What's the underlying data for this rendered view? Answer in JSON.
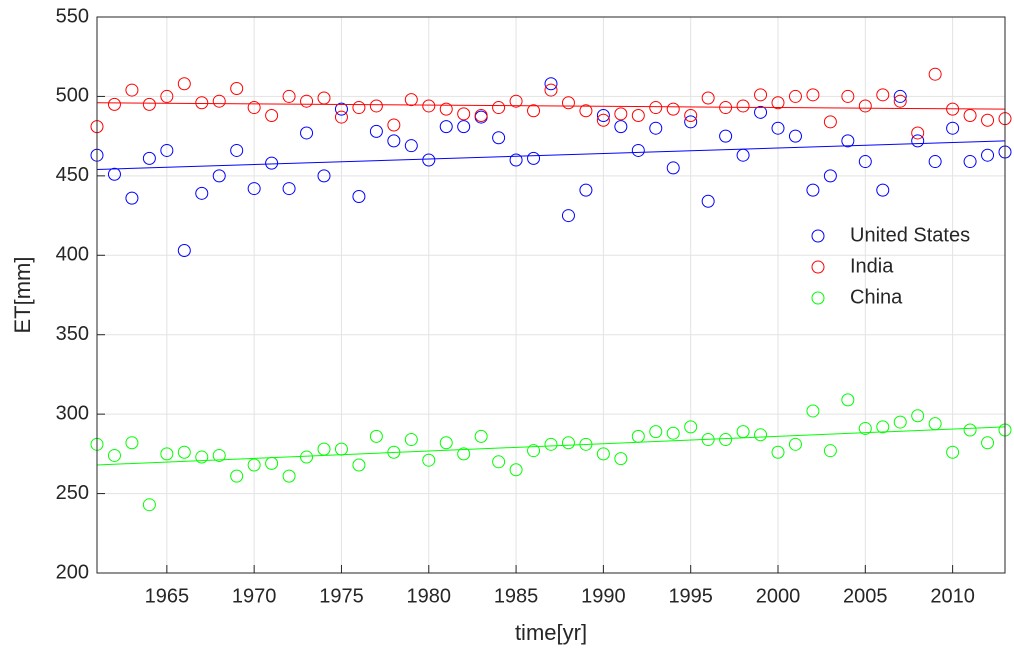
{
  "chart_data": {
    "type": "scatter",
    "xlabel": "time[yr]",
    "ylabel": "ET[mm]",
    "x": [
      1961,
      1962,
      1963,
      1964,
      1965,
      1966,
      1967,
      1968,
      1969,
      1970,
      1971,
      1972,
      1973,
      1974,
      1975,
      1976,
      1977,
      1978,
      1979,
      1980,
      1981,
      1982,
      1983,
      1984,
      1985,
      1986,
      1987,
      1988,
      1989,
      1990,
      1991,
      1992,
      1993,
      1994,
      1995,
      1996,
      1997,
      1998,
      1999,
      2000,
      2001,
      2002,
      2003,
      2004,
      2005,
      2006,
      2007,
      2008,
      2009,
      2010,
      2011,
      2012,
      2013
    ],
    "series": [
      {
        "name": "United States",
        "color": "#0000ff",
        "values": [
          463,
          451,
          436,
          461,
          466,
          403,
          439,
          450,
          466,
          442,
          458,
          442,
          477,
          450,
          492,
          437,
          478,
          472,
          469,
          460,
          481,
          481,
          487,
          474,
          460,
          461,
          508,
          425,
          441,
          488,
          481,
          466,
          480,
          455,
          484,
          434,
          475,
          463,
          490,
          480,
          475,
          441,
          450,
          472,
          459,
          441,
          500,
          472,
          459,
          480,
          459,
          463,
          465
        ],
        "trend": [
          454,
          472
        ]
      },
      {
        "name": "India",
        "color": "#ff0000",
        "values": [
          481,
          495,
          504,
          495,
          500,
          508,
          496,
          497,
          505,
          493,
          488,
          500,
          497,
          499,
          487,
          493,
          494,
          482,
          498,
          494,
          492,
          489,
          488,
          493,
          497,
          491,
          504,
          496,
          491,
          485,
          489,
          488,
          493,
          492,
          488,
          499,
          493,
          494,
          501,
          496,
          500,
          501,
          484,
          500,
          494,
          501,
          497,
          477,
          514,
          492,
          488,
          485,
          486
        ],
        "trend": [
          496,
          492
        ]
      },
      {
        "name": "China",
        "color": "#00ff00",
        "values": [
          281,
          274,
          282,
          243,
          275,
          276,
          273,
          274,
          261,
          268,
          269,
          261,
          273,
          278,
          278,
          268,
          286,
          276,
          284,
          271,
          282,
          275,
          286,
          270,
          265,
          277,
          281,
          282,
          281,
          275,
          272,
          286,
          289,
          288,
          292,
          284,
          284,
          289,
          287,
          276,
          281,
          302,
          277,
          309,
          291,
          292,
          295,
          299,
          294,
          276,
          290,
          282,
          290
        ],
        "trend": [
          268,
          292
        ]
      }
    ],
    "trend_x": [
      1961,
      2013
    ],
    "xlim": [
      1961,
      2013
    ],
    "xticks": [
      1965,
      1970,
      1975,
      1980,
      1985,
      1990,
      1995,
      2000,
      2005,
      2010
    ],
    "ylim": [
      200,
      550
    ],
    "yticks": [
      200,
      250,
      300,
      350,
      400,
      450,
      500,
      550
    ],
    "grid": true,
    "legend": "east"
  }
}
